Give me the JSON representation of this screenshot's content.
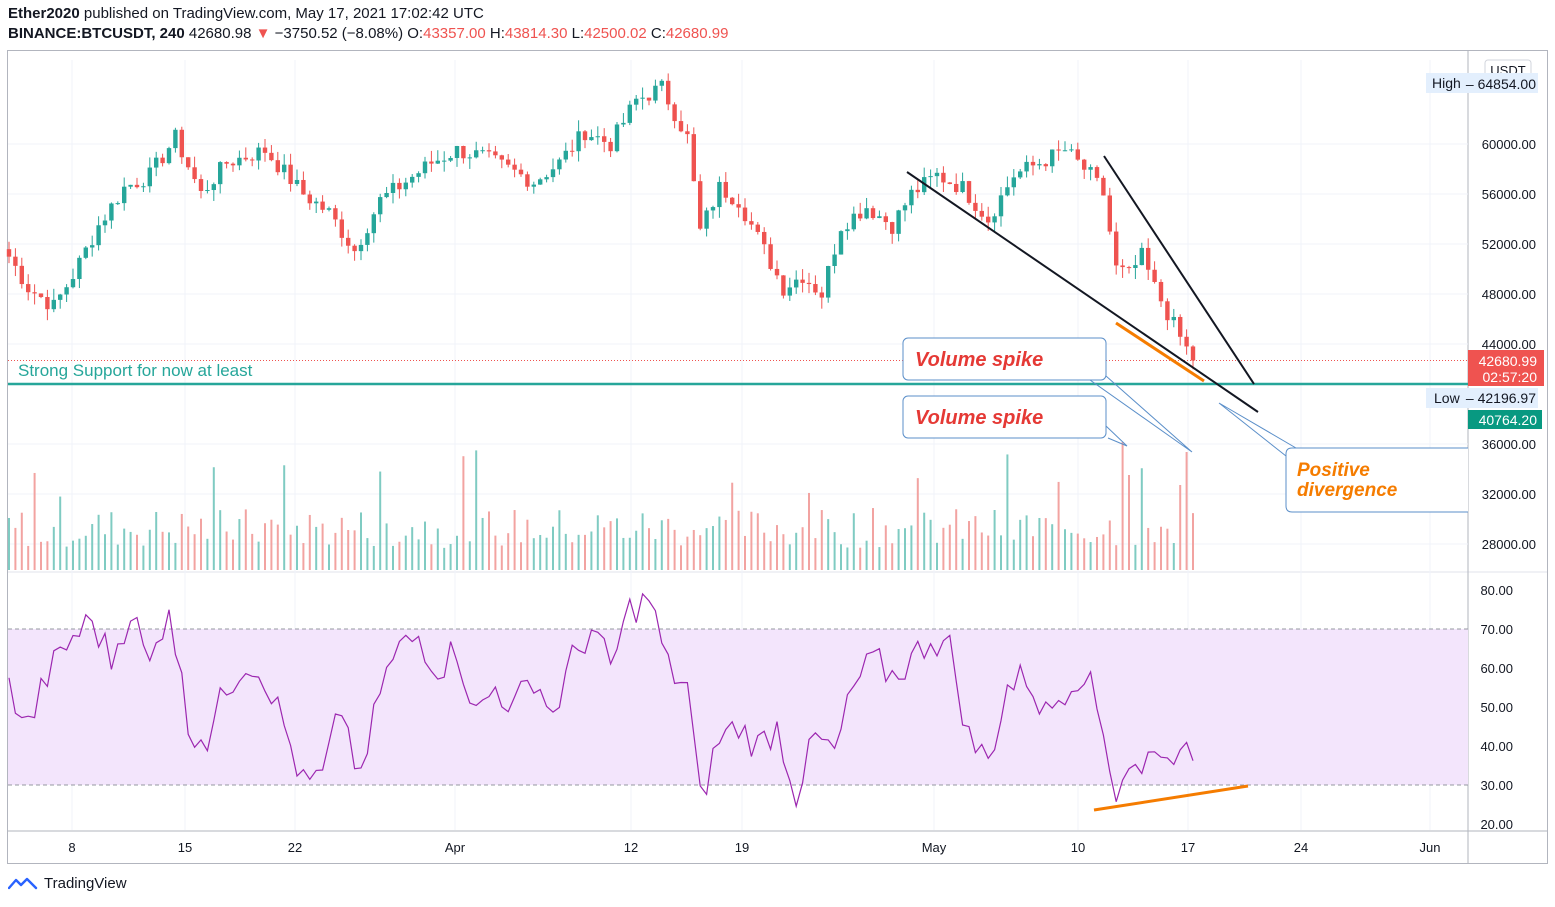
{
  "header": {
    "author": "Ether2020",
    "published": "published on TradingView.com, May 17, 2021 17:02:42 UTC",
    "symbol": "BINANCE:BTCUSDT, 240",
    "last": "42680.98",
    "change_arrow": "▼",
    "change": "−3750.52 (−8.08%)",
    "o_label": "O:",
    "o_value": "43357.00",
    "h_label": "H:",
    "h_value": "43814.30",
    "l_label": "L:",
    "l_value": "42500.02",
    "c_label": "C:",
    "c_value": "42680.99"
  },
  "footer": {
    "brand": "TradingView"
  },
  "colors": {
    "up": "#26a69a",
    "down": "#ef5350",
    "rsi": "#9c27b0",
    "rsi_band": "#f3e5fc",
    "support": "#26a69a",
    "annot": "#f57f17"
  },
  "chart_data": {
    "type": "candlestick",
    "price_axis": {
      "currency": "USDT",
      "ticks": [
        "64854.00",
        "60000.00",
        "56000.00",
        "52000.00",
        "48000.00",
        "44000.00",
        "36000.00",
        "32000.00",
        "28000.00"
      ],
      "ylim": [
        26000,
        66000
      ],
      "high_label": "High",
      "high_value": "64854.00",
      "low_label": "Low",
      "low_value": "42196.97",
      "last_price": "42680.99",
      "countdown": "02:57:20",
      "green_tag": "40764.20"
    },
    "x_ticks": [
      "8",
      "15",
      "22",
      "Apr",
      "12",
      "19",
      "May",
      "10",
      "17",
      "24",
      "Jun"
    ],
    "price_path": [
      [
        0,
        51000
      ],
      [
        3,
        48500
      ],
      [
        7,
        47000
      ],
      [
        10,
        49500
      ],
      [
        14,
        53500
      ],
      [
        18,
        56500
      ],
      [
        22,
        57500
      ],
      [
        26,
        60500
      ],
      [
        30,
        56000
      ],
      [
        34,
        58500
      ],
      [
        40,
        59500
      ],
      [
        46,
        56000
      ],
      [
        50,
        54500
      ],
      [
        54,
        51500
      ],
      [
        58,
        55500
      ],
      [
        62,
        57000
      ],
      [
        66,
        58500
      ],
      [
        70,
        59500
      ],
      [
        74,
        59000
      ],
      [
        78,
        58000
      ],
      [
        82,
        57000
      ],
      [
        86,
        58500
      ],
      [
        90,
        61000
      ],
      [
        94,
        60000
      ],
      [
        98,
        63500
      ],
      [
        102,
        64500
      ],
      [
        106,
        60500
      ],
      [
        108,
        53000
      ],
      [
        111,
        56500
      ],
      [
        114,
        55500
      ],
      [
        118,
        51500
      ],
      [
        121,
        48500
      ],
      [
        124,
        49500
      ],
      [
        127,
        48000
      ],
      [
        130,
        53500
      ],
      [
        134,
        55000
      ],
      [
        138,
        53500
      ],
      [
        141,
        56000
      ],
      [
        145,
        57500
      ],
      [
        149,
        56500
      ],
      [
        153,
        54000
      ],
      [
        157,
        57500
      ],
      [
        161,
        58500
      ],
      [
        165,
        59500
      ],
      [
        169,
        57500
      ],
      [
        171,
        56000
      ],
      [
        173,
        50000
      ],
      [
        175,
        49500
      ],
      [
        177,
        51000
      ],
      [
        179,
        48500
      ],
      [
        181,
        46500
      ],
      [
        183,
        44500
      ],
      [
        185,
        42680
      ]
    ],
    "support": {
      "price": 42680,
      "label": "Strong Support for now at least"
    },
    "trendlines": [
      {
        "from": [
          139,
          57500
        ],
        "to": [
          191,
          42100
        ]
      },
      {
        "from": [
          168,
          59000
        ],
        "to": [
          190,
          43000
        ]
      }
    ],
    "divergence_price_line": {
      "from": [
        170,
        46000
      ],
      "to": [
        182,
        43000
      ]
    },
    "rsi": {
      "ticks": [
        "80.00",
        "70.00",
        "60.00",
        "50.00",
        "40.00",
        "30.00",
        "20.00"
      ],
      "ylim": [
        18,
        82
      ],
      "band": [
        30,
        70
      ],
      "path": [
        [
          0,
          55
        ],
        [
          3,
          45
        ],
        [
          6,
          58
        ],
        [
          10,
          68
        ],
        [
          13,
          72
        ],
        [
          16,
          62
        ],
        [
          19,
          75
        ],
        [
          22,
          60
        ],
        [
          25,
          77
        ],
        [
          28,
          45
        ],
        [
          31,
          42
        ],
        [
          34,
          55
        ],
        [
          37,
          62
        ],
        [
          40,
          58
        ],
        [
          43,
          45
        ],
        [
          46,
          30
        ],
        [
          49,
          32
        ],
        [
          52,
          50
        ],
        [
          55,
          30
        ],
        [
          58,
          55
        ],
        [
          61,
          65
        ],
        [
          64,
          68
        ],
        [
          67,
          60
        ],
        [
          70,
          65
        ],
        [
          73,
          48
        ],
        [
          76,
          55
        ],
        [
          79,
          50
        ],
        [
          82,
          58
        ],
        [
          85,
          48
        ],
        [
          88,
          62
        ],
        [
          91,
          70
        ],
        [
          94,
          60
        ],
        [
          97,
          75
        ],
        [
          100,
          78
        ],
        [
          103,
          60
        ],
        [
          106,
          55
        ],
        [
          108,
          26
        ],
        [
          111,
          42
        ],
        [
          114,
          45
        ],
        [
          117,
          40
        ],
        [
          120,
          45
        ],
        [
          123,
          28
        ],
        [
          126,
          42
        ],
        [
          129,
          38
        ],
        [
          132,
          55
        ],
        [
          135,
          62
        ],
        [
          138,
          58
        ],
        [
          141,
          62
        ],
        [
          144,
          68
        ],
        [
          147,
          65
        ],
        [
          150,
          42
        ],
        [
          153,
          36
        ],
        [
          156,
          55
        ],
        [
          159,
          58
        ],
        [
          162,
          48
        ],
        [
          165,
          55
        ],
        [
          168,
          60
        ],
        [
          171,
          44
        ],
        [
          173,
          28
        ],
        [
          175,
          36
        ],
        [
          177,
          32
        ],
        [
          179,
          42
        ],
        [
          181,
          35
        ],
        [
          183,
          43
        ],
        [
          185,
          32
        ]
      ],
      "divergence_line": {
        "from": [
          170,
          24
        ],
        "to": [
          192,
          30
        ]
      }
    },
    "annotations": [
      {
        "text": "Volume spike"
      },
      {
        "text": "Volume spike"
      },
      {
        "text": "Positive divergence"
      }
    ]
  }
}
